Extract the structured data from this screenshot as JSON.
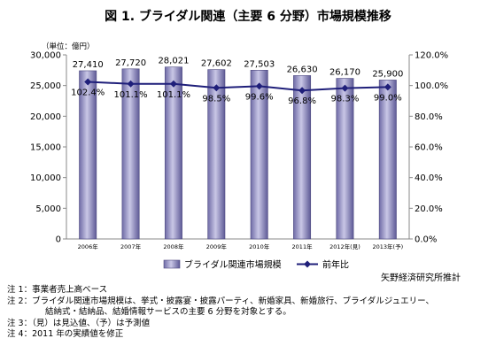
{
  "chart_data": {
    "type": "bar",
    "title": "図 1. ブライダル関連（主要 6 分野）市場規模推移",
    "unit_label": "（単位：億円）",
    "categories": [
      "2006年",
      "2007年",
      "2008年",
      "2009年",
      "2010年",
      "2011年",
      "2012年(見)",
      "2013年(予)"
    ],
    "series": [
      {
        "name": "ブライダル関連市場規模",
        "type": "bar",
        "axis": "left",
        "values": [
          27410,
          27720,
          28021,
          27602,
          27503,
          26630,
          26170,
          25900
        ],
        "value_labels": [
          "27,410",
          "27,720",
          "28,021",
          "27,602",
          "27,503",
          "26,630",
          "26,170",
          "25,900"
        ]
      },
      {
        "name": "前年比",
        "type": "line",
        "axis": "right",
        "values": [
          102.4,
          101.1,
          101.1,
          98.5,
          99.6,
          96.8,
          98.3,
          99.0
        ],
        "value_labels": [
          "102.4%",
          "101.1%",
          "101.1%",
          "98.5%",
          "99.6%",
          "96.8%",
          "98.3%",
          "99.0%"
        ]
      }
    ],
    "y_left": {
      "min": 0,
      "max": 30000,
      "ticks": [
        0,
        5000,
        10000,
        15000,
        20000,
        25000,
        30000
      ],
      "tick_labels": [
        "0",
        "5,000",
        "10,000",
        "15,000",
        "20,000",
        "25,000",
        "30,000"
      ]
    },
    "y_right": {
      "min": 0,
      "max": 120,
      "ticks": [
        0,
        20,
        40,
        60,
        80,
        100,
        120
      ],
      "tick_labels": [
        "0.0%",
        "20.0%",
        "40.0%",
        "60.0%",
        "80.0%",
        "100.0%",
        "120.0%"
      ]
    },
    "grid": false,
    "legend_placement": "bottom",
    "colors": {
      "bar": "#9a97c4",
      "bar_dark": "#56538a",
      "line": "#1f1f7a"
    }
  },
  "source": "矢野経済研究所推計",
  "notes": [
    "注 1：事業者売上高ベース",
    "注 2：ブライダル関連市場規模は、挙式・披露宴・披露パーティ、新婚家具、新婚旅行、ブライダルジュエリー、",
    "結納式・結納品、結婚情報サービスの主要 6 分野を対象とする。",
    "注 3：（見）は見込値、（予）は予測値",
    "注 4：2011 年の実績値を修正"
  ]
}
